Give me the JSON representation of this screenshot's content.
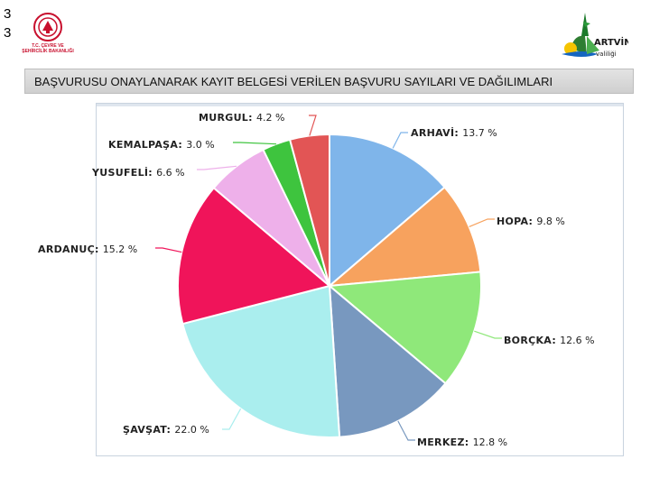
{
  "page_numbers": [
    "3",
    "3"
  ],
  "logos": {
    "left_caption": "T.C. ÇEVRE VE ŞEHİRCİLİK BAKANLIĞI",
    "right_text_top": "ARTVİN",
    "right_text_bottom": "valiliği"
  },
  "header": {
    "title": "BAŞVURUSU ONAYLANARAK KAYIT BELGESİ VERİLEN BAŞVURU SAYILARI VE DAĞILIMLARI"
  },
  "chart_data": {
    "type": "pie",
    "title": "",
    "start": "top",
    "direction": "clockwise",
    "slices": [
      {
        "name": "ARHAVİ",
        "value": 13.7,
        "label": "13.7 %",
        "color": "#7fb5ea"
      },
      {
        "name": "HOPA",
        "value": 9.8,
        "label": "9.8 %",
        "color": "#f7a25e"
      },
      {
        "name": "BORÇKA",
        "value": 12.6,
        "label": "12.6 %",
        "color": "#8fe87a"
      },
      {
        "name": "MERKEZ",
        "value": 12.8,
        "label": "12.8 %",
        "color": "#7898bf"
      },
      {
        "name": "ŞAVŞAT",
        "value": 22.0,
        "label": "22.0 %",
        "color": "#aaeeee"
      },
      {
        "name": "ARDANUÇ",
        "value": 15.2,
        "label": "15.2 %",
        "color": "#f0145a"
      },
      {
        "name": "YUSUFELİ",
        "value": 6.6,
        "label": "6.6 %",
        "color": "#eeb0ea"
      },
      {
        "name": "KEMALPAŞA",
        "value": 3.0,
        "label": "3.0 %",
        "color": "#3ec43e"
      },
      {
        "name": "MURGUL",
        "value": 4.2,
        "label": "4.2 %",
        "color": "#e25555"
      }
    ]
  }
}
